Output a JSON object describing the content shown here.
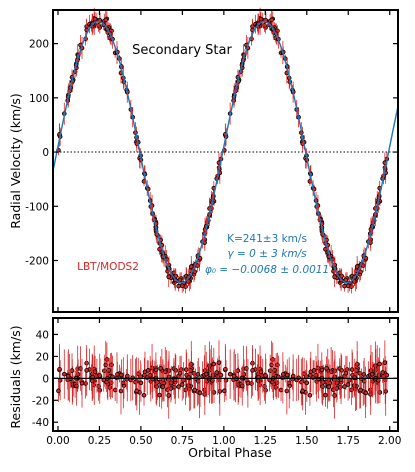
{
  "chart_data": [
    {
      "type": "scatter",
      "panel": "top",
      "annotation_title": "Secondary Star",
      "ylabel": "Radial Velocity (km/s)",
      "xlim": [
        -0.03,
        2.05
      ],
      "ylim": [
        -295,
        262
      ],
      "yticks": [
        -200,
        -100,
        0,
        100,
        200
      ],
      "xticks": [
        0.0,
        0.25,
        0.5,
        0.75,
        1.0,
        1.25,
        1.5,
        1.75,
        2.0
      ],
      "zero_line": 0,
      "instrument_label": "LBT/MODS2",
      "fit": {
        "K_label": "K=241±3 km/s",
        "gamma_label": "γ = 0 ± 3 km/s",
        "phi_label": "φ₀ = −0.0068 ± 0.0011",
        "K": 241,
        "gamma": 0,
        "phi0": -0.0068,
        "model": "v = gamma + K * sin(2*pi*(phase - phi0))"
      },
      "series": [
        {
          "name": "LBT/MODS2",
          "color": "#d62728",
          "marker": "circle",
          "point_count": 180,
          "typical_error": 12
        },
        {
          "name": "model",
          "color": "#1f77b4",
          "style": "line"
        }
      ],
      "colors": {
        "data": "#d62728",
        "model": "#1f77b4",
        "instrument": "#d62728",
        "fit_text": "#1f77b4"
      }
    },
    {
      "type": "scatter",
      "panel": "bottom",
      "xlabel": "Orbital Phase",
      "ylabel": "Residuals (km/s)",
      "xlim": [
        -0.03,
        2.05
      ],
      "ylim": [
        -48,
        55
      ],
      "yticks": [
        -40,
        -20,
        0,
        20,
        40
      ],
      "xticks": [
        0.0,
        0.25,
        0.5,
        0.75,
        1.0,
        1.25,
        1.5,
        1.75,
        2.0
      ],
      "xtick_labels": [
        "0.00",
        "0.25",
        "0.50",
        "0.75",
        "1.00",
        "1.25",
        "1.50",
        "1.75",
        "2.00"
      ],
      "zero_line": 0,
      "residual_range": [
        -25,
        25
      ]
    }
  ]
}
